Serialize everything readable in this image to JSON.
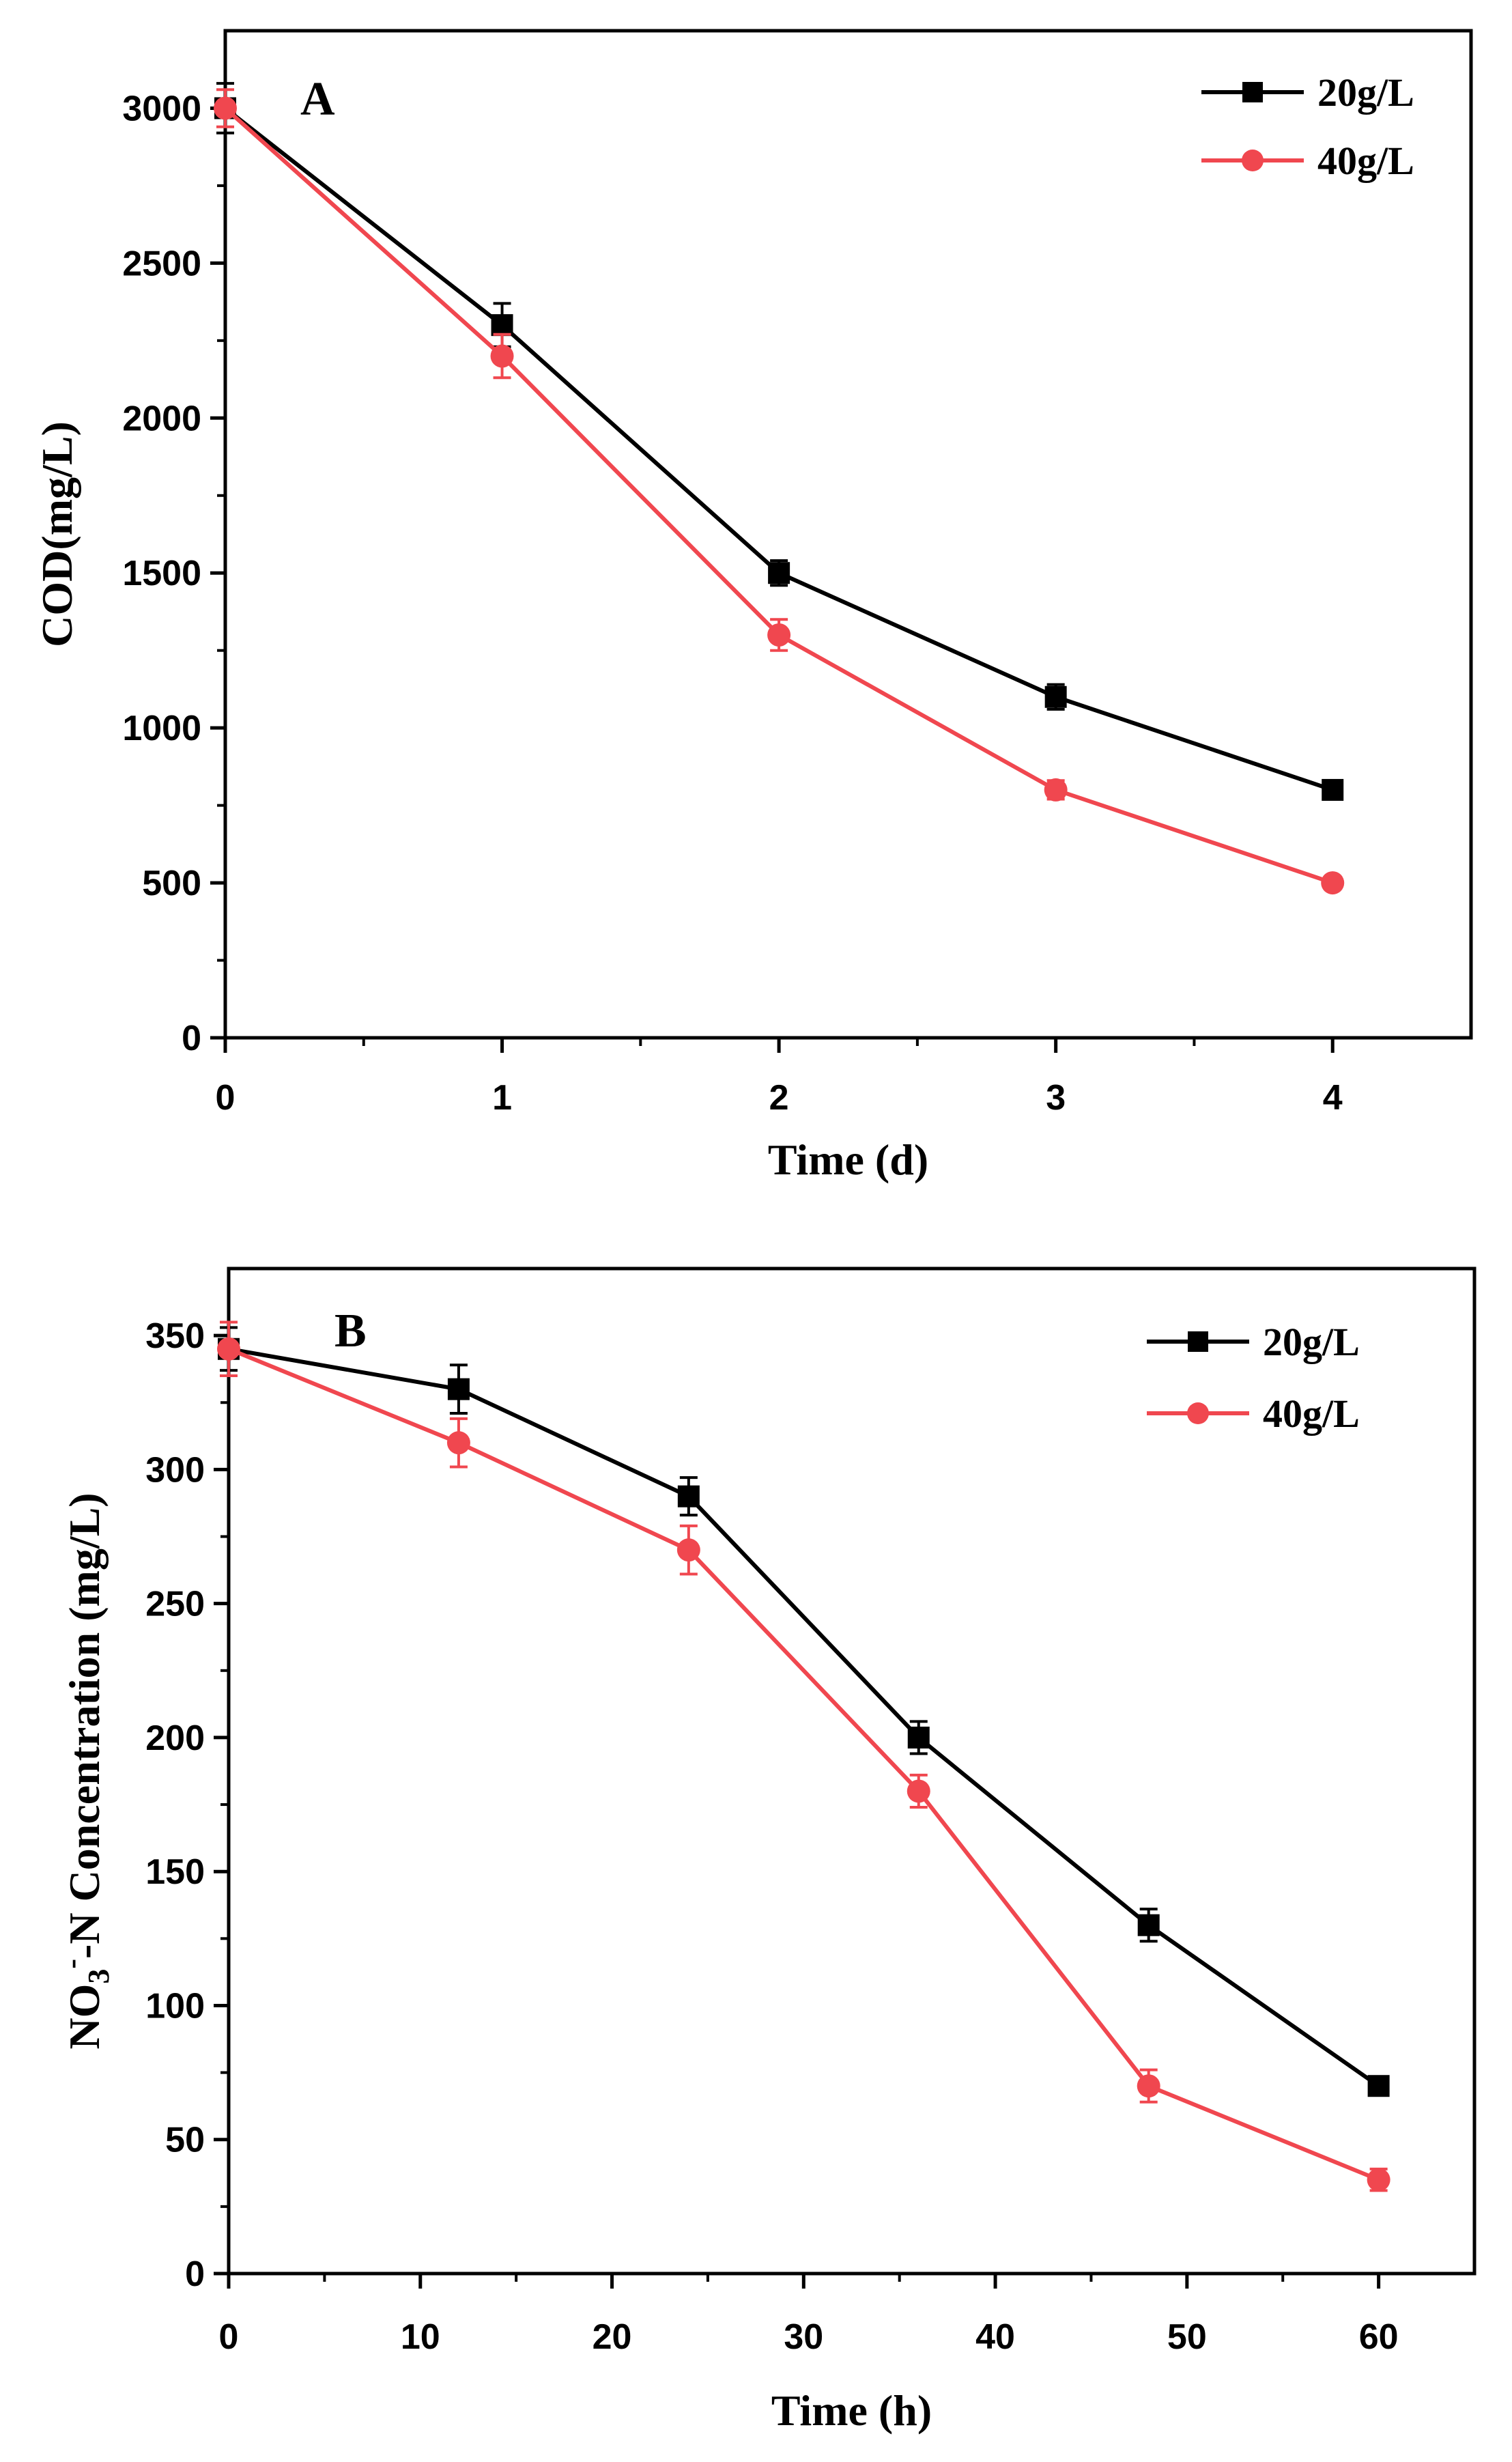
{
  "chart_data": [
    {
      "type": "line",
      "panel_label": "A",
      "xlabel": "Time (d)",
      "ylabel": "COD(mg/L)",
      "xlim": [
        0,
        4.5
      ],
      "ylim": [
        0,
        3250
      ],
      "xticks": [
        0,
        1,
        2,
        3,
        4
      ],
      "yticks": [
        0,
        500,
        1000,
        1500,
        2000,
        2500,
        3000
      ],
      "x_tick_labels": [
        "0",
        "1",
        "2",
        "3",
        "4"
      ],
      "y_tick_labels": [
        "0",
        "500",
        "1000",
        "1500",
        "2000",
        "2500",
        "3000"
      ],
      "legend_position": "top-right",
      "series": [
        {
          "name": "20g/L",
          "color": "#000000",
          "marker": "square",
          "x": [
            0,
            1,
            2,
            3,
            4
          ],
          "values": [
            3000,
            2300,
            1500,
            1100,
            800
          ],
          "errors": [
            80,
            70,
            40,
            40,
            25
          ]
        },
        {
          "name": "40g/L",
          "color": "#f0474f",
          "marker": "circle",
          "x": [
            0,
            1,
            2,
            3,
            4
          ],
          "values": [
            3000,
            2200,
            1300,
            800,
            500
          ],
          "errors": [
            60,
            70,
            50,
            30,
            20
          ]
        }
      ]
    },
    {
      "type": "line",
      "panel_label": "B",
      "xlabel": "Time (h)",
      "ylabel": "NO3--N Concentration (mg/L)",
      "ylabel_parts": {
        "prefix": "NO",
        "subscript": "3",
        "superscript": "-",
        "suffix": "-N Concentration (mg/L)"
      },
      "xlim": [
        0,
        65
      ],
      "ylim": [
        0,
        375
      ],
      "xticks": [
        0,
        10,
        20,
        30,
        40,
        50,
        60
      ],
      "yticks": [
        0,
        50,
        100,
        150,
        200,
        250,
        300,
        350
      ],
      "x_tick_labels": [
        "0",
        "10",
        "20",
        "30",
        "40",
        "50",
        "60"
      ],
      "y_tick_labels": [
        "0",
        "50",
        "100",
        "150",
        "200",
        "250",
        "300",
        "350"
      ],
      "legend_position": "top-right",
      "series": [
        {
          "name": "20g/L",
          "color": "#000000",
          "marker": "square",
          "x": [
            0,
            12,
            24,
            36,
            48,
            60
          ],
          "values": [
            345,
            330,
            290,
            200,
            130,
            70
          ],
          "errors": [
            8,
            9,
            7,
            6,
            6,
            3
          ]
        },
        {
          "name": "40g/L",
          "color": "#f0474f",
          "marker": "circle",
          "x": [
            0,
            12,
            24,
            36,
            48,
            60
          ],
          "values": [
            345,
            310,
            270,
            180,
            70,
            35
          ],
          "errors": [
            10,
            9,
            9,
            6,
            6,
            4
          ]
        }
      ]
    }
  ]
}
